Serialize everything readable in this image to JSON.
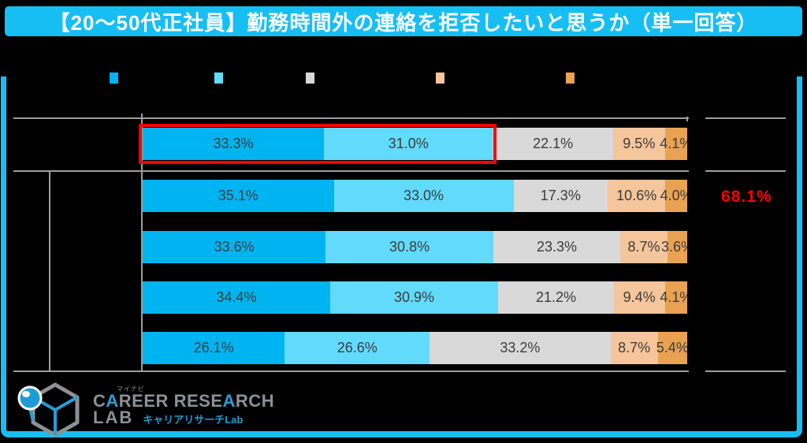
{
  "title": "【20〜50代正社員】勤務時間外の連絡を拒否したいと思うか（単一回答）",
  "colors": {
    "frame": "#16bef4",
    "background": "#000000",
    "grid": "#9e9e9e",
    "segment_label": "#3c3c3c",
    "highlight": "#fe0000",
    "annotation": "#fe0000"
  },
  "legend": {
    "items": [
      {
        "label": "",
        "color": "#00b4f1"
      },
      {
        "label": "",
        "color": "#62dafc"
      },
      {
        "label": "",
        "color": "#d9d9d9"
      },
      {
        "label": "",
        "color": "#f5c59b"
      },
      {
        "label": "",
        "color": "#e8a251"
      }
    ]
  },
  "chart_data": {
    "type": "bar",
    "orientation": "horizontal",
    "stacked": true,
    "xlim": [
      0,
      100
    ],
    "value_label_format": "0.0%",
    "categories": [
      "",
      "",
      "",
      "",
      ""
    ],
    "categories_note": "row labels rendered black-on-black (not visible)",
    "series": [
      {
        "name": "",
        "color": "#00b4f1",
        "values": [
          33.3,
          35.1,
          33.6,
          34.4,
          26.1
        ]
      },
      {
        "name": "",
        "color": "#62dafc",
        "values": [
          31.0,
          33.0,
          30.8,
          30.9,
          26.6
        ]
      },
      {
        "name": "",
        "color": "#d9d9d9",
        "values": [
          22.1,
          17.3,
          23.3,
          21.2,
          33.2
        ]
      },
      {
        "name": "",
        "color": "#f5c59b",
        "values": [
          9.5,
          10.6,
          8.7,
          9.4,
          8.7
        ]
      },
      {
        "name": "",
        "color": "#e8a251",
        "values": [
          4.1,
          4.0,
          3.6,
          4.1,
          5.4
        ]
      }
    ],
    "highlight": {
      "row_index": 0,
      "segments": [
        0,
        1
      ],
      "border_color": "#fe0000"
    },
    "annotation": {
      "text": "68.1%",
      "row_index": 1,
      "color": "#fe0000"
    }
  },
  "logo": {
    "tiny": "マイナビ",
    "line1": "CAREER RESEARCH",
    "line2": "LAB",
    "sub": "キャリアリサーチLab"
  }
}
